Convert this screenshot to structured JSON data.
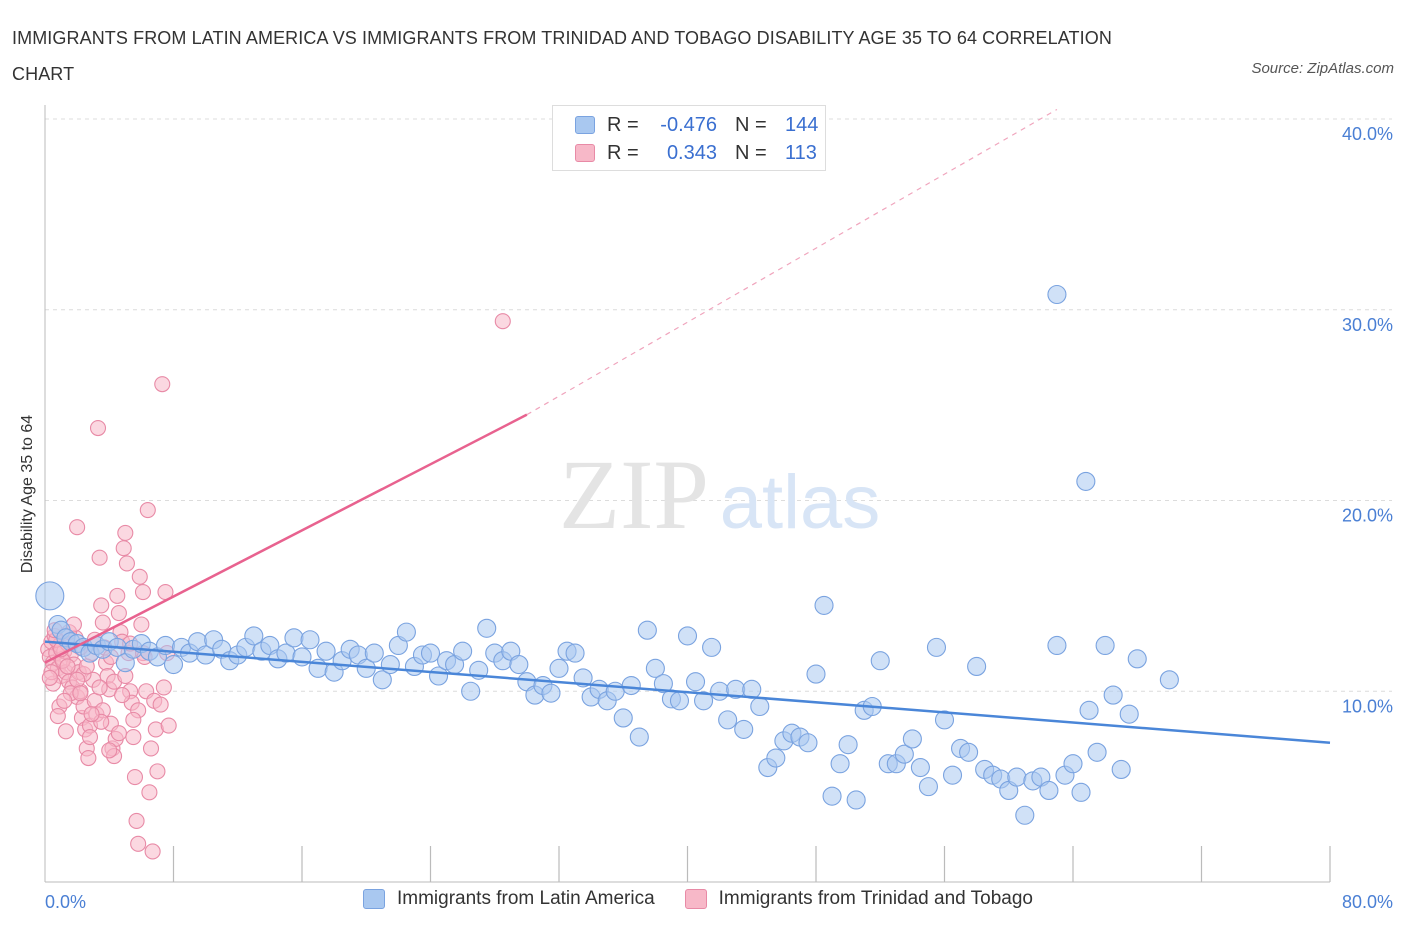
{
  "title": "IMMIGRANTS FROM LATIN AMERICA VS IMMIGRANTS FROM TRINIDAD AND TOBAGO DISABILITY AGE 35 TO 64 CORRELATION CHART",
  "source": "Source: ZipAtlas.com",
  "watermark": {
    "zip": "ZIP",
    "atlas": "atlas"
  },
  "legend": {
    "rows": [
      {
        "r_label": "R =",
        "r_value": "-0.476",
        "n_label": "N =",
        "n_value": "144",
        "color": "#a9c8f0",
        "border": "#7aa3e0"
      },
      {
        "r_label": "R =",
        "r_value": "0.343",
        "n_label": "N =",
        "n_value": "113",
        "color": "#f7b8c8",
        "border": "#e88aa6"
      }
    ]
  },
  "bottom_legend": {
    "items": [
      {
        "label": "Immigrants from Latin America",
        "color": "#a9c8f0",
        "border": "#7aa3e0"
      },
      {
        "label": "Immigrants from Trinidad and Tobago",
        "color": "#f7b8c8",
        "border": "#e88aa6"
      }
    ]
  },
  "chart_data": {
    "type": "scatter",
    "title": "IMMIGRANTS FROM LATIN AMERICA VS IMMIGRANTS FROM TRINIDAD AND TOBAGO DISABILITY AGE 35 TO 64 CORRELATION CHART",
    "xlabel": "",
    "ylabel": "Disability Age 35 to 64",
    "xlim": [
      0,
      80
    ],
    "ylim": [
      0,
      40
    ],
    "x_tick_labels": [
      "0.0%",
      "80.0%"
    ],
    "y_ticks": [
      10,
      20,
      30,
      40
    ],
    "y_tick_labels": [
      "10.0%",
      "20.0%",
      "30.0%",
      "40.0%"
    ],
    "grid": "dashed horizontal",
    "legend_position": "top-center",
    "colors": {
      "latin": "#4a86d8",
      "latin_fill": "#a9c8f0",
      "trinidad": "#e8628f",
      "trinidad_fill": "#f7b8c8"
    },
    "series": [
      {
        "name": "Immigrants from Latin America",
        "r": -0.476,
        "n": 144,
        "trend": {
          "x": [
            0,
            80
          ],
          "y": [
            12.6,
            7.3
          ],
          "style": "solid"
        },
        "points": [
          [
            0.3,
            15.0
          ],
          [
            0.8,
            13.5
          ],
          [
            1.0,
            13.2
          ],
          [
            1.3,
            12.8
          ],
          [
            1.6,
            12.6
          ],
          [
            2.0,
            12.5
          ],
          [
            2.4,
            12.3
          ],
          [
            2.8,
            12.0
          ],
          [
            3.2,
            12.4
          ],
          [
            3.6,
            12.2
          ],
          [
            4.0,
            12.6
          ],
          [
            4.5,
            12.3
          ],
          [
            5.0,
            11.5
          ],
          [
            5.5,
            12.2
          ],
          [
            6.0,
            12.5
          ],
          [
            6.5,
            12.1
          ],
          [
            7.0,
            11.8
          ],
          [
            7.5,
            12.4
          ],
          [
            8.0,
            11.4
          ],
          [
            8.5,
            12.3
          ],
          [
            9.0,
            12.0
          ],
          [
            9.5,
            12.6
          ],
          [
            10.0,
            11.9
          ],
          [
            10.5,
            12.7
          ],
          [
            11.0,
            12.2
          ],
          [
            11.5,
            11.6
          ],
          [
            12.0,
            11.9
          ],
          [
            12.5,
            12.3
          ],
          [
            13.0,
            12.9
          ],
          [
            13.5,
            12.1
          ],
          [
            14.0,
            12.4
          ],
          [
            14.5,
            11.7
          ],
          [
            15.0,
            12.0
          ],
          [
            15.5,
            12.8
          ],
          [
            16.0,
            11.8
          ],
          [
            16.5,
            12.7
          ],
          [
            17.0,
            11.2
          ],
          [
            17.5,
            12.1
          ],
          [
            18.0,
            11.0
          ],
          [
            18.5,
            11.6
          ],
          [
            19.0,
            12.2
          ],
          [
            19.5,
            11.9
          ],
          [
            20.0,
            11.2
          ],
          [
            20.5,
            12.0
          ],
          [
            21.0,
            10.6
          ],
          [
            21.5,
            11.4
          ],
          [
            22.0,
            12.4
          ],
          [
            22.5,
            13.1
          ],
          [
            23.0,
            11.3
          ],
          [
            23.5,
            11.9
          ],
          [
            24.0,
            12.0
          ],
          [
            24.5,
            10.8
          ],
          [
            25.0,
            11.6
          ],
          [
            25.5,
            11.4
          ],
          [
            26.0,
            12.1
          ],
          [
            26.5,
            10.0
          ],
          [
            27.0,
            11.1
          ],
          [
            27.5,
            13.3
          ],
          [
            28.0,
            12.0
          ],
          [
            28.5,
            11.6
          ],
          [
            29.0,
            12.1
          ],
          [
            29.5,
            11.4
          ],
          [
            30.0,
            10.5
          ],
          [
            30.5,
            9.8
          ],
          [
            31.0,
            10.3
          ],
          [
            31.5,
            9.9
          ],
          [
            32.0,
            11.2
          ],
          [
            32.5,
            12.1
          ],
          [
            33.0,
            12.0
          ],
          [
            33.5,
            10.7
          ],
          [
            34.0,
            9.7
          ],
          [
            34.5,
            10.1
          ],
          [
            35.0,
            9.5
          ],
          [
            35.5,
            10.0
          ],
          [
            36.0,
            8.6
          ],
          [
            36.5,
            10.3
          ],
          [
            37.0,
            7.6
          ],
          [
            37.5,
            13.2
          ],
          [
            38.0,
            11.2
          ],
          [
            38.5,
            10.4
          ],
          [
            39.0,
            9.6
          ],
          [
            39.5,
            9.5
          ],
          [
            40.0,
            12.9
          ],
          [
            40.5,
            10.5
          ],
          [
            41.0,
            9.5
          ],
          [
            41.5,
            12.3
          ],
          [
            42.0,
            10.0
          ],
          [
            42.5,
            8.5
          ],
          [
            43.0,
            10.1
          ],
          [
            43.5,
            8.0
          ],
          [
            44.0,
            10.1
          ],
          [
            44.5,
            9.2
          ],
          [
            45.0,
            6.0
          ],
          [
            45.5,
            6.5
          ],
          [
            46.0,
            7.4
          ],
          [
            46.5,
            7.8
          ],
          [
            47.0,
            7.6
          ],
          [
            47.5,
            7.3
          ],
          [
            48.0,
            10.9
          ],
          [
            48.5,
            14.5
          ],
          [
            49.0,
            4.5
          ],
          [
            49.5,
            6.2
          ],
          [
            50.0,
            7.2
          ],
          [
            50.5,
            4.3
          ],
          [
            51.0,
            9.0
          ],
          [
            51.5,
            9.2
          ],
          [
            52.0,
            11.6
          ],
          [
            52.5,
            6.2
          ],
          [
            53.0,
            6.2
          ],
          [
            53.5,
            6.7
          ],
          [
            54.0,
            7.5
          ],
          [
            54.5,
            6.0
          ],
          [
            55.0,
            5.0
          ],
          [
            55.5,
            12.3
          ],
          [
            56.0,
            8.5
          ],
          [
            56.5,
            5.6
          ],
          [
            57.0,
            7.0
          ],
          [
            57.5,
            6.8
          ],
          [
            58.0,
            11.3
          ],
          [
            58.5,
            5.9
          ],
          [
            59.0,
            5.6
          ],
          [
            59.5,
            5.4
          ],
          [
            60.0,
            4.8
          ],
          [
            60.5,
            5.5
          ],
          [
            61.0,
            3.5
          ],
          [
            61.5,
            5.3
          ],
          [
            62.0,
            5.5
          ],
          [
            62.5,
            4.8
          ],
          [
            63.0,
            12.4
          ],
          [
            63.5,
            5.6
          ],
          [
            64.0,
            6.2
          ],
          [
            64.5,
            4.7
          ],
          [
            65.0,
            9.0
          ],
          [
            65.5,
            6.8
          ],
          [
            66.0,
            12.4
          ],
          [
            66.5,
            9.8
          ],
          [
            67.0,
            5.9
          ],
          [
            67.5,
            8.8
          ],
          [
            68.0,
            11.7
          ],
          [
            70.0,
            10.6
          ],
          [
            63.0,
            30.8
          ],
          [
            64.8,
            21.0
          ]
        ]
      },
      {
        "name": "Immigrants from Trinidad and Tobago",
        "r": 0.343,
        "n": 113,
        "trend": {
          "x": [
            0,
            30
          ],
          "y": [
            11.5,
            24.5
          ],
          "style": "solid",
          "extension": {
            "x": [
              30,
              63
            ],
            "y": [
              24.5,
              40.5
            ],
            "style": "dashed"
          }
        },
        "points": [
          [
            0.2,
            12.2
          ],
          [
            0.3,
            11.8
          ],
          [
            0.4,
            12.6
          ],
          [
            0.5,
            11.5
          ],
          [
            0.6,
            12.9
          ],
          [
            0.7,
            12.0
          ],
          [
            0.8,
            11.2
          ],
          [
            0.9,
            12.4
          ],
          [
            1.0,
            10.8
          ],
          [
            1.1,
            11.7
          ],
          [
            1.2,
            12.1
          ],
          [
            1.3,
            11.0
          ],
          [
            1.4,
            12.5
          ],
          [
            1.5,
            10.5
          ],
          [
            1.6,
            11.9
          ],
          [
            1.7,
            10.2
          ],
          [
            1.8,
            11.4
          ],
          [
            1.9,
            12.8
          ],
          [
            2.0,
            9.7
          ],
          [
            2.1,
            11.0
          ],
          [
            2.2,
            10.0
          ],
          [
            2.3,
            8.6
          ],
          [
            2.4,
            9.2
          ],
          [
            2.5,
            8.0
          ],
          [
            2.6,
            7.0
          ],
          [
            2.7,
            6.5
          ],
          [
            2.8,
            8.2
          ],
          [
            2.9,
            12.0
          ],
          [
            3.0,
            10.6
          ],
          [
            3.1,
            9.5
          ],
          [
            3.2,
            8.8
          ],
          [
            3.3,
            23.8
          ],
          [
            3.4,
            17.0
          ],
          [
            3.5,
            14.5
          ],
          [
            3.6,
            13.6
          ],
          [
            3.7,
            12.3
          ],
          [
            3.8,
            11.5
          ],
          [
            3.9,
            10.8
          ],
          [
            4.0,
            10.1
          ],
          [
            4.1,
            8.3
          ],
          [
            4.2,
            7.0
          ],
          [
            4.3,
            6.6
          ],
          [
            4.4,
            7.5
          ],
          [
            4.5,
            15.0
          ],
          [
            4.6,
            14.1
          ],
          [
            4.7,
            13.1
          ],
          [
            4.8,
            12.6
          ],
          [
            4.9,
            17.5
          ],
          [
            5.0,
            18.3
          ],
          [
            5.1,
            16.7
          ],
          [
            5.2,
            12.0
          ],
          [
            5.3,
            10.0
          ],
          [
            5.4,
            9.4
          ],
          [
            5.5,
            7.6
          ],
          [
            5.6,
            5.5
          ],
          [
            5.7,
            3.2
          ],
          [
            5.8,
            2.0
          ],
          [
            5.9,
            16.0
          ],
          [
            6.0,
            13.5
          ],
          [
            6.1,
            12.0
          ],
          [
            6.2,
            11.8
          ],
          [
            6.3,
            10.0
          ],
          [
            6.4,
            19.5
          ],
          [
            6.5,
            4.7
          ],
          [
            6.6,
            7.0
          ],
          [
            6.7,
            1.6
          ],
          [
            6.8,
            9.5
          ],
          [
            6.9,
            8.0
          ],
          [
            7.0,
            5.8
          ],
          [
            7.2,
            9.3
          ],
          [
            7.3,
            26.1
          ],
          [
            7.4,
            10.2
          ],
          [
            7.5,
            15.2
          ],
          [
            7.6,
            12.0
          ],
          [
            7.7,
            8.2
          ],
          [
            2.0,
            18.6
          ],
          [
            2.2,
            12.3
          ],
          [
            1.5,
            13.1
          ],
          [
            0.5,
            10.4
          ],
          [
            0.9,
            9.2
          ],
          [
            1.3,
            7.9
          ],
          [
            1.8,
            13.5
          ],
          [
            2.4,
            10.9
          ],
          [
            2.8,
            7.6
          ],
          [
            3.6,
            9.0
          ],
          [
            4.3,
            10.5
          ],
          [
            0.4,
            11.0
          ],
          [
            0.7,
            12.7
          ],
          [
            1.1,
            11.6
          ],
          [
            1.6,
            9.9
          ],
          [
            2.6,
            11.3
          ],
          [
            3.1,
            12.7
          ],
          [
            3.5,
            8.4
          ],
          [
            4.0,
            6.9
          ],
          [
            4.8,
            9.8
          ],
          [
            5.3,
            12.5
          ],
          [
            5.8,
            9.0
          ],
          [
            1.0,
            12.2
          ],
          [
            1.4,
            11.3
          ],
          [
            2.0,
            10.6
          ],
          [
            0.6,
            13.2
          ],
          [
            0.3,
            10.7
          ],
          [
            0.8,
            8.7
          ],
          [
            1.2,
            9.5
          ],
          [
            2.2,
            9.9
          ],
          [
            2.9,
            8.8
          ],
          [
            3.4,
            10.2
          ],
          [
            4.1,
            11.8
          ],
          [
            4.6,
            7.8
          ],
          [
            5.0,
            10.8
          ],
          [
            5.5,
            8.5
          ],
          [
            28.5,
            29.4
          ],
          [
            6.1,
            15.2
          ]
        ]
      }
    ]
  }
}
